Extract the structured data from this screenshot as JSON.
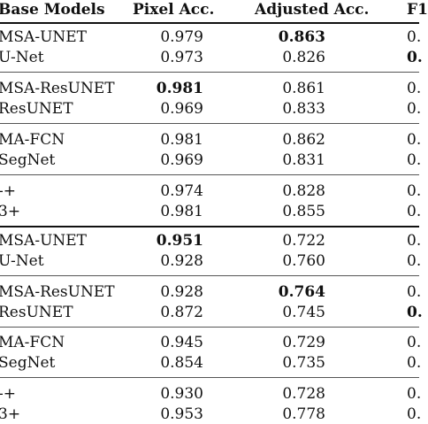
{
  "header": {
    "model": "Base Models",
    "pixel": "Pixel Acc.",
    "adjusted": "Adjusted Acc.",
    "f1": "F1"
  },
  "rows": [
    {
      "model": "MSA-UNET",
      "pixel": "0.979",
      "adjusted": "0.863",
      "f1": "0.",
      "pixel_bold": false,
      "adjusted_bold": true,
      "f1_bold": false
    },
    {
      "model": "U-Net",
      "pixel": "0.973",
      "adjusted": "0.826",
      "f1": "0.",
      "pixel_bold": false,
      "adjusted_bold": false,
      "f1_bold": true
    },
    {
      "model": "MSA-ResUNET",
      "pixel": "0.981",
      "adjusted": "0.861",
      "f1": "0.",
      "pixel_bold": true,
      "adjusted_bold": false,
      "f1_bold": false
    },
    {
      "model": "ResUNET",
      "pixel": "0.969",
      "adjusted": "0.833",
      "f1": "0.",
      "pixel_bold": false,
      "adjusted_bold": false,
      "f1_bold": false
    },
    {
      "model": "MA-FCN",
      "pixel": "0.981",
      "adjusted": "0.862",
      "f1": "0.",
      "pixel_bold": false,
      "adjusted_bold": false,
      "f1_bold": false
    },
    {
      "model": "SegNet",
      "pixel": "0.969",
      "adjusted": "0.831",
      "f1": "0.",
      "pixel_bold": false,
      "adjusted_bold": false,
      "f1_bold": false
    },
    {
      "model": "-+",
      "pixel": "0.974",
      "adjusted": "0.828",
      "f1": "0.",
      "pixel_bold": false,
      "adjusted_bold": false,
      "f1_bold": false
    },
    {
      "model": "3+",
      "pixel": "0.981",
      "adjusted": "0.855",
      "f1": "0.",
      "pixel_bold": false,
      "adjusted_bold": false,
      "f1_bold": false
    },
    {
      "model": "MSA-UNET",
      "pixel": "0.951",
      "adjusted": "0.722",
      "f1": "0.",
      "pixel_bold": true,
      "adjusted_bold": false,
      "f1_bold": false
    },
    {
      "model": "U-Net",
      "pixel": "0.928",
      "adjusted": "0.760",
      "f1": "0.",
      "pixel_bold": false,
      "adjusted_bold": false,
      "f1_bold": false
    },
    {
      "model": "MSA-ResUNET",
      "pixel": "0.928",
      "adjusted": "0.764",
      "f1": "0.",
      "pixel_bold": false,
      "adjusted_bold": true,
      "f1_bold": false
    },
    {
      "model": "ResUNET",
      "pixel": "0.872",
      "adjusted": "0.745",
      "f1": "0.",
      "pixel_bold": false,
      "adjusted_bold": false,
      "f1_bold": true
    },
    {
      "model": "MA-FCN",
      "pixel": "0.945",
      "adjusted": "0.729",
      "f1": "0.",
      "pixel_bold": false,
      "adjusted_bold": false,
      "f1_bold": false
    },
    {
      "model": "SegNet",
      "pixel": "0.854",
      "adjusted": "0.735",
      "f1": "0.",
      "pixel_bold": false,
      "adjusted_bold": false,
      "f1_bold": false
    },
    {
      "model": "-+",
      "pixel": "0.930",
      "adjusted": "0.728",
      "f1": "0.",
      "pixel_bold": false,
      "adjusted_bold": false,
      "f1_bold": false
    },
    {
      "model": "3+",
      "pixel": "0.953",
      "adjusted": "0.778",
      "f1": "0.",
      "pixel_bold": false,
      "adjusted_bold": false,
      "f1_bold": false
    }
  ]
}
